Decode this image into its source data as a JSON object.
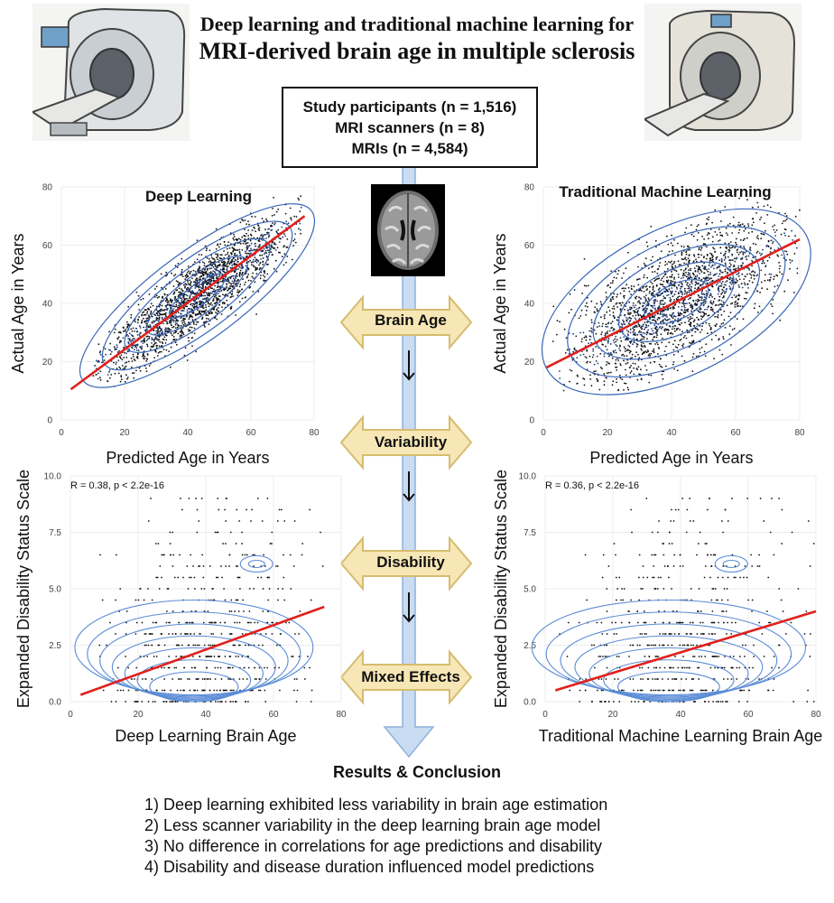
{
  "header": {
    "title_line1": "Deep learning and traditional machine learning for",
    "title_line2": "MRI-derived brain age in multiple sclerosis"
  },
  "study_box": {
    "line1": "Study participants (n = 1,516)",
    "line2": "MRI scanners (n = 8)",
    "line3": "MRIs (n = 4,584)"
  },
  "flow": {
    "steps": [
      "Brain Age",
      "Variability",
      "Disability",
      "Mixed Effects"
    ],
    "colors": {
      "arrow_fill": "#c9dcf2",
      "arrow_stroke": "#8fb0d8",
      "step_fill": "#f7e7b6",
      "step_stroke": "#d6bc6f"
    }
  },
  "results": {
    "title": "Results & Conclusion",
    "items": [
      "1) Deep learning exhibited less variability in brain age estimation",
      "2) Less scanner variability in the deep learning brain age model",
      "3) No difference in correlations for age predictions and disability",
      "4) Disability and disease duration influenced model predictions"
    ]
  },
  "icons": {
    "scanner_left": "mri-scanner-icon",
    "scanner_right": "mri-scanner-icon",
    "brain": "brain-mri-slice-icon"
  },
  "chart_data": [
    {
      "type": "scatter",
      "title": "Deep Learning",
      "xlabel": "Predicted Age in Years",
      "ylabel": "Actual Age in Years",
      "xlim": [
        0,
        80
      ],
      "ylim": [
        0,
        80
      ],
      "xticks": [
        "0",
        "20",
        "40",
        "60",
        "80"
      ],
      "yticks": [
        "0",
        "20",
        "40",
        "60",
        "80"
      ],
      "fit_line": {
        "x": [
          3,
          77
        ],
        "y": [
          10.5,
          70
        ]
      },
      "point_cloud": {
        "x_range": [
          10,
          76
        ],
        "slope": 0.85,
        "spread": 6
      },
      "contours": true,
      "colors": {
        "points": "#111111",
        "fit": "#e0201c",
        "contour": "#3a68b8"
      }
    },
    {
      "type": "scatter",
      "title": "Traditional Machine Learning",
      "xlabel": "Predicted Age in Years",
      "ylabel": "Actual Age in Years",
      "xlim": [
        0,
        80
      ],
      "ylim": [
        0,
        80
      ],
      "xticks": [
        "0",
        "20",
        "40",
        "60",
        "80"
      ],
      "yticks": [
        "0",
        "20",
        "40",
        "60",
        "80"
      ],
      "fit_line": {
        "x": [
          1,
          80
        ],
        "y": [
          18,
          62
        ]
      },
      "point_cloud": {
        "x_range": [
          3,
          80
        ],
        "slope": 0.56,
        "spread": 10
      },
      "contours": true,
      "colors": {
        "points": "#111111",
        "fit": "#e0201c",
        "contour": "#3a68b8"
      }
    },
    {
      "type": "scatter",
      "annotation": "R = 0.38, p < 2.2e-16",
      "xlabel": "Deep Learning Brain Age",
      "ylabel": "Expanded Disability Status Scale",
      "xlim": [
        0,
        80
      ],
      "ylim": [
        0,
        10
      ],
      "xticks": [
        "0",
        "20",
        "40",
        "60",
        "80"
      ],
      "yticks": [
        "0.0",
        "2.5",
        "5.0",
        "7.5",
        "10.0"
      ],
      "fit_line": {
        "x": [
          3,
          75
        ],
        "y": [
          0.3,
          4.2
        ]
      },
      "point_cloud": {
        "x_range": [
          8,
          75
        ]
      },
      "contours": true,
      "colors": {
        "points": "#111111",
        "fit": "#e0201c",
        "contour": "#5b8cd6"
      }
    },
    {
      "type": "scatter",
      "annotation": "R = 0.36, p < 2.2e-16",
      "xlabel": "Traditional Machine Learning Brain Age",
      "ylabel": "Expanded Disability Status Scale",
      "xlim": [
        0,
        80
      ],
      "ylim": [
        0,
        10
      ],
      "xticks": [
        "0",
        "20",
        "40",
        "60",
        "80"
      ],
      "yticks": [
        "0.0",
        "2.5",
        "5.0",
        "7.5",
        "10.0"
      ],
      "fit_line": {
        "x": [
          3,
          80
        ],
        "y": [
          0.5,
          4.0
        ]
      },
      "point_cloud": {
        "x_range": [
          3,
          80
        ]
      },
      "contours": true,
      "colors": {
        "points": "#111111",
        "fit": "#e0201c",
        "contour": "#5b8cd6"
      }
    }
  ]
}
